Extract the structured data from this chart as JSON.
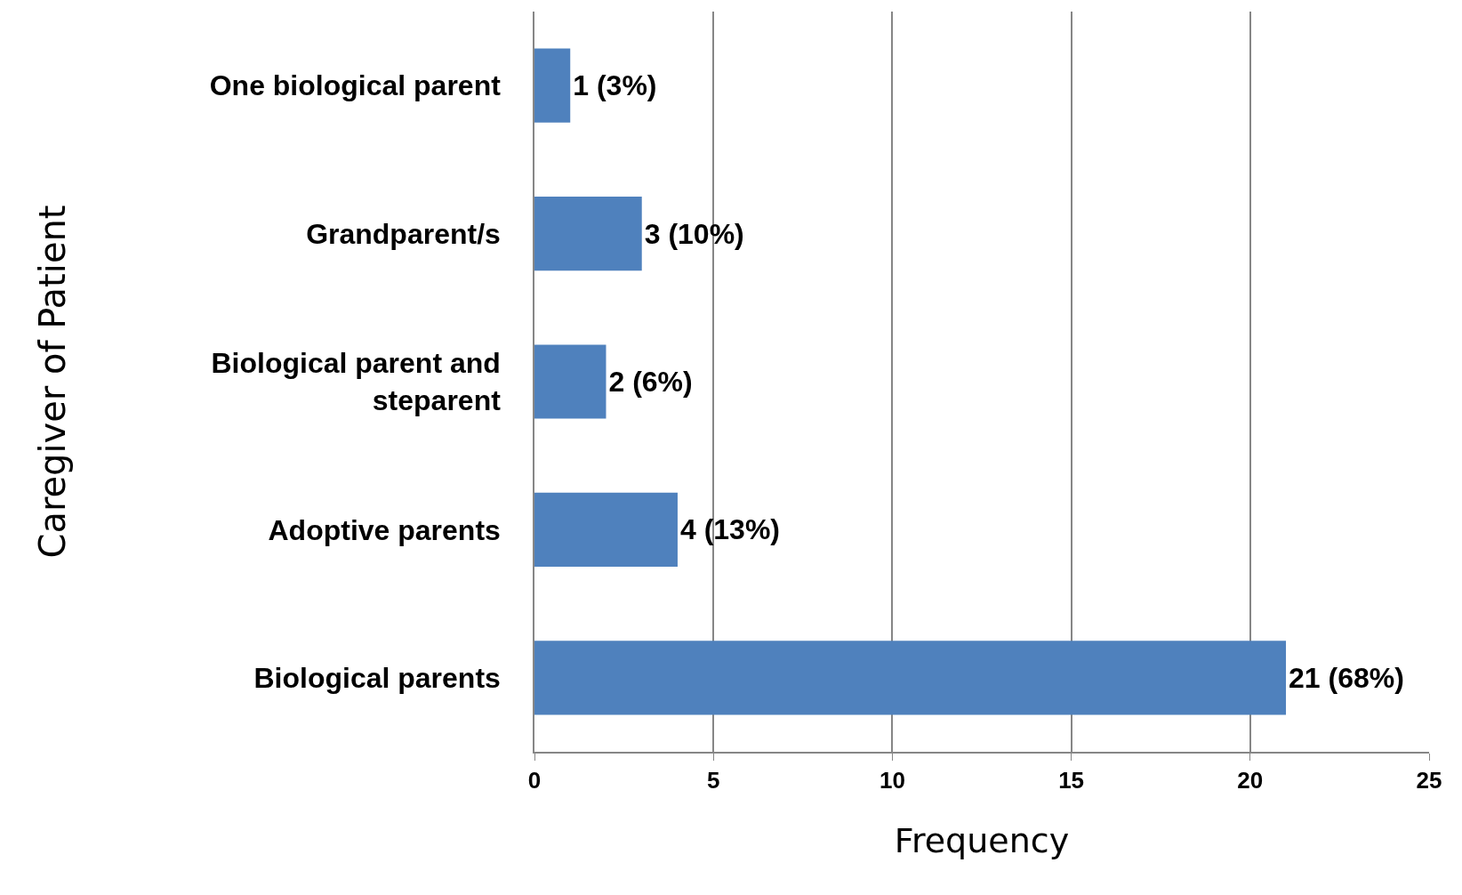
{
  "chart_data": {
    "type": "bar",
    "orientation": "horizontal",
    "xlabel": "Frequency",
    "ylabel": "Caregiver of Patient",
    "categories": [
      "One biological parent",
      "Grandparent/s",
      "Biological parent and steparent",
      "Adoptive parents",
      "Biological parents"
    ],
    "values": [
      1,
      3,
      2,
      4,
      21
    ],
    "color": "#4f81bd",
    "value_labels": [
      "1 (3%)",
      "3 (10%)",
      "2 (6%)",
      "4 (13%)",
      "21 (68%)"
    ],
    "xlim": [
      0,
      25
    ],
    "xticks": [
      0,
      5,
      10,
      15,
      20,
      25
    ],
    "grid": "x"
  }
}
